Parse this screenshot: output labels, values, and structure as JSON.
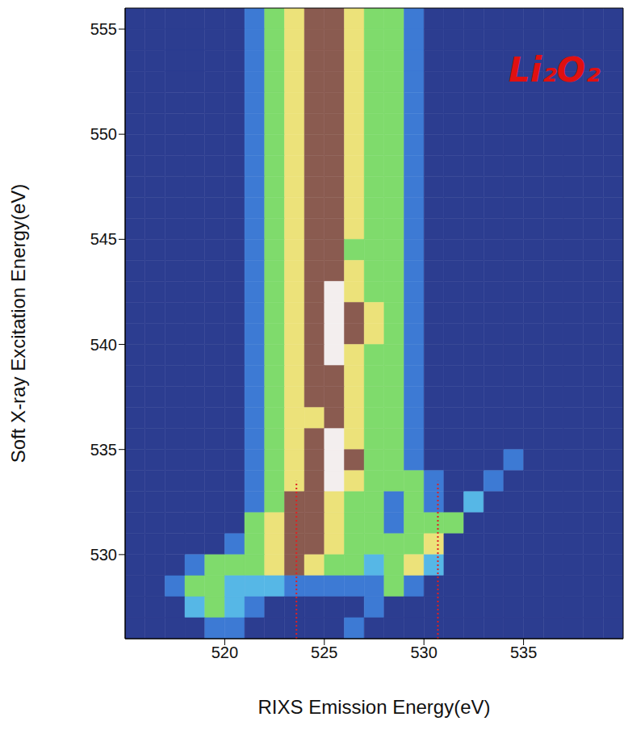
{
  "chart_data": {
    "type": "heatmap",
    "title": "Li₂O₂",
    "x_label": "RIXS Emission Energy(eV)",
    "y_label": "Soft X-ray Excitation Energy(eV)",
    "xlim": [
      515,
      540
    ],
    "ylim": [
      526,
      556
    ],
    "xticks": [
      520,
      525,
      530,
      535
    ],
    "yticks": [
      530,
      535,
      540,
      545,
      550,
      555
    ],
    "x": [
      515.5,
      516.5,
      517.5,
      518.5,
      519.5,
      520.5,
      521.5,
      522.5,
      523.5,
      524.5,
      525.5,
      526.5,
      527.5,
      528.5,
      529.5,
      530.5,
      531.5,
      532.5,
      533.5,
      534.5,
      535.5,
      536.5,
      537.5,
      538.5,
      539.5
    ],
    "y": [
      555.5,
      554.5,
      553.5,
      552.5,
      551.5,
      550.5,
      549.5,
      548.5,
      547.5,
      546.5,
      545.5,
      544.5,
      543.5,
      542.5,
      541.5,
      540.5,
      539.5,
      538.5,
      537.5,
      536.5,
      535.5,
      534.5,
      533.5,
      532.5,
      531.5,
      530.5,
      529.5,
      528.5,
      527.5,
      526.5
    ],
    "cells": [
      [
        0,
        0,
        0,
        0,
        0,
        0,
        1,
        3,
        4,
        5,
        5,
        4,
        3,
        3,
        1,
        0,
        0,
        0,
        0,
        0,
        0,
        0,
        0,
        0,
        0
      ],
      [
        0,
        0,
        0,
        0,
        0,
        0,
        1,
        3,
        4,
        5,
        5,
        4,
        3,
        3,
        1,
        0,
        0,
        0,
        0,
        0,
        0,
        0,
        0,
        0,
        0
      ],
      [
        0,
        0,
        0,
        0,
        0,
        0,
        1,
        3,
        4,
        5,
        5,
        4,
        3,
        3,
        1,
        0,
        0,
        0,
        0,
        0,
        0,
        0,
        0,
        0,
        0
      ],
      [
        0,
        0,
        0,
        0,
        0,
        0,
        1,
        3,
        4,
        5,
        5,
        4,
        3,
        3,
        1,
        0,
        0,
        0,
        0,
        0,
        0,
        0,
        0,
        0,
        0
      ],
      [
        0,
        0,
        0,
        0,
        0,
        0,
        1,
        3,
        4,
        5,
        5,
        4,
        3,
        3,
        1,
        0,
        0,
        0,
        0,
        0,
        0,
        0,
        0,
        0,
        0
      ],
      [
        0,
        0,
        0,
        0,
        0,
        0,
        1,
        3,
        4,
        5,
        5,
        4,
        3,
        3,
        1,
        0,
        0,
        0,
        0,
        0,
        0,
        0,
        0,
        0,
        0
      ],
      [
        0,
        0,
        0,
        0,
        0,
        0,
        1,
        3,
        4,
        5,
        5,
        4,
        3,
        3,
        1,
        0,
        0,
        0,
        0,
        0,
        0,
        0,
        0,
        0,
        0
      ],
      [
        0,
        0,
        0,
        0,
        0,
        0,
        1,
        3,
        4,
        5,
        5,
        4,
        3,
        3,
        1,
        0,
        0,
        0,
        0,
        0,
        0,
        0,
        0,
        0,
        0
      ],
      [
        0,
        0,
        0,
        0,
        0,
        0,
        1,
        3,
        4,
        5,
        5,
        4,
        3,
        3,
        1,
        0,
        0,
        0,
        0,
        0,
        0,
        0,
        0,
        0,
        0
      ],
      [
        0,
        0,
        0,
        0,
        0,
        0,
        1,
        3,
        4,
        5,
        5,
        4,
        3,
        3,
        1,
        0,
        0,
        0,
        0,
        0,
        0,
        0,
        0,
        0,
        0
      ],
      [
        0,
        0,
        0,
        0,
        0,
        0,
        1,
        3,
        4,
        5,
        5,
        4,
        3,
        3,
        1,
        0,
        0,
        0,
        0,
        0,
        0,
        0,
        0,
        0,
        0
      ],
      [
        0,
        0,
        0,
        0,
        0,
        0,
        1,
        3,
        4,
        5,
        5,
        3,
        3,
        3,
        1,
        0,
        0,
        0,
        0,
        0,
        0,
        0,
        0,
        0,
        0
      ],
      [
        0,
        0,
        0,
        0,
        0,
        0,
        1,
        3,
        4,
        5,
        5,
        4,
        3,
        3,
        1,
        0,
        0,
        0,
        0,
        0,
        0,
        0,
        0,
        0,
        0
      ],
      [
        0,
        0,
        0,
        0,
        0,
        0,
        1,
        3,
        4,
        5,
        6,
        4,
        3,
        3,
        1,
        0,
        0,
        0,
        0,
        0,
        0,
        0,
        0,
        0,
        0
      ],
      [
        0,
        0,
        0,
        0,
        0,
        0,
        1,
        3,
        4,
        5,
        6,
        5,
        4,
        3,
        1,
        0,
        0,
        0,
        0,
        0,
        0,
        0,
        0,
        0,
        0
      ],
      [
        0,
        0,
        0,
        0,
        0,
        0,
        1,
        3,
        4,
        5,
        6,
        5,
        4,
        3,
        1,
        0,
        0,
        0,
        0,
        0,
        0,
        0,
        0,
        0,
        0
      ],
      [
        0,
        0,
        0,
        0,
        0,
        0,
        1,
        3,
        4,
        5,
        6,
        4,
        3,
        3,
        1,
        0,
        0,
        0,
        0,
        0,
        0,
        0,
        0,
        0,
        0
      ],
      [
        0,
        0,
        0,
        0,
        0,
        0,
        1,
        3,
        4,
        5,
        5,
        4,
        3,
        3,
        1,
        0,
        0,
        0,
        0,
        0,
        0,
        0,
        0,
        0,
        0
      ],
      [
        0,
        0,
        0,
        0,
        0,
        0,
        1,
        3,
        4,
        5,
        5,
        4,
        3,
        3,
        1,
        0,
        0,
        0,
        0,
        0,
        0,
        0,
        0,
        0,
        0
      ],
      [
        0,
        0,
        0,
        0,
        0,
        0,
        1,
        3,
        4,
        4,
        5,
        4,
        3,
        3,
        1,
        0,
        0,
        0,
        0,
        0,
        0,
        0,
        0,
        0,
        0
      ],
      [
        0,
        0,
        0,
        0,
        0,
        0,
        1,
        3,
        4,
        5,
        6,
        4,
        3,
        3,
        1,
        0,
        0,
        0,
        0,
        0,
        0,
        0,
        0,
        0,
        0
      ],
      [
        0,
        0,
        0,
        0,
        0,
        0,
        1,
        3,
        4,
        5,
        6,
        5,
        3,
        3,
        1,
        0,
        0,
        0,
        0,
        1,
        0,
        0,
        0,
        0,
        0
      ],
      [
        0,
        0,
        0,
        0,
        0,
        0,
        1,
        3,
        4,
        5,
        6,
        4,
        3,
        3,
        3,
        1,
        0,
        0,
        1,
        0,
        0,
        0,
        0,
        0,
        0
      ],
      [
        0,
        0,
        0,
        0,
        0,
        0,
        1,
        3,
        5,
        5,
        4,
        3,
        3,
        1,
        3,
        1,
        0,
        2,
        0,
        0,
        0,
        0,
        0,
        0,
        0
      ],
      [
        0,
        0,
        0,
        0,
        0,
        0,
        3,
        4,
        5,
        5,
        4,
        3,
        3,
        1,
        3,
        3,
        3,
        0,
        0,
        0,
        0,
        0,
        0,
        0,
        0
      ],
      [
        0,
        0,
        0,
        0,
        0,
        1,
        3,
        4,
        5,
        5,
        4,
        3,
        3,
        3,
        3,
        4,
        0,
        0,
        0,
        0,
        0,
        0,
        0,
        0,
        0
      ],
      [
        0,
        0,
        0,
        1,
        3,
        3,
        3,
        4,
        5,
        4,
        3,
        3,
        2,
        3,
        4,
        2,
        0,
        0,
        0,
        0,
        0,
        0,
        0,
        0,
        0
      ],
      [
        0,
        0,
        1,
        3,
        3,
        2,
        2,
        2,
        1,
        1,
        1,
        1,
        1,
        3,
        1,
        0,
        0,
        0,
        0,
        0,
        0,
        0,
        0,
        0,
        0
      ],
      [
        0,
        0,
        0,
        2,
        3,
        2,
        1,
        0,
        0,
        0,
        0,
        0,
        1,
        0,
        0,
        0,
        0,
        0,
        0,
        0,
        0,
        0,
        0,
        0,
        0
      ],
      [
        0,
        0,
        0,
        0,
        1,
        1,
        0,
        0,
        0,
        0,
        0,
        1,
        0,
        0,
        0,
        0,
        0,
        0,
        0,
        0,
        0,
        0,
        0,
        0,
        0
      ]
    ],
    "vlines": [
      {
        "x": 523.6,
        "ymax": 533.5,
        "color": "#e02020",
        "line_style": "dotted"
      },
      {
        "x": 530.7,
        "ymax": 533.5,
        "color": "#e02020",
        "line_style": "dotted"
      }
    ]
  }
}
